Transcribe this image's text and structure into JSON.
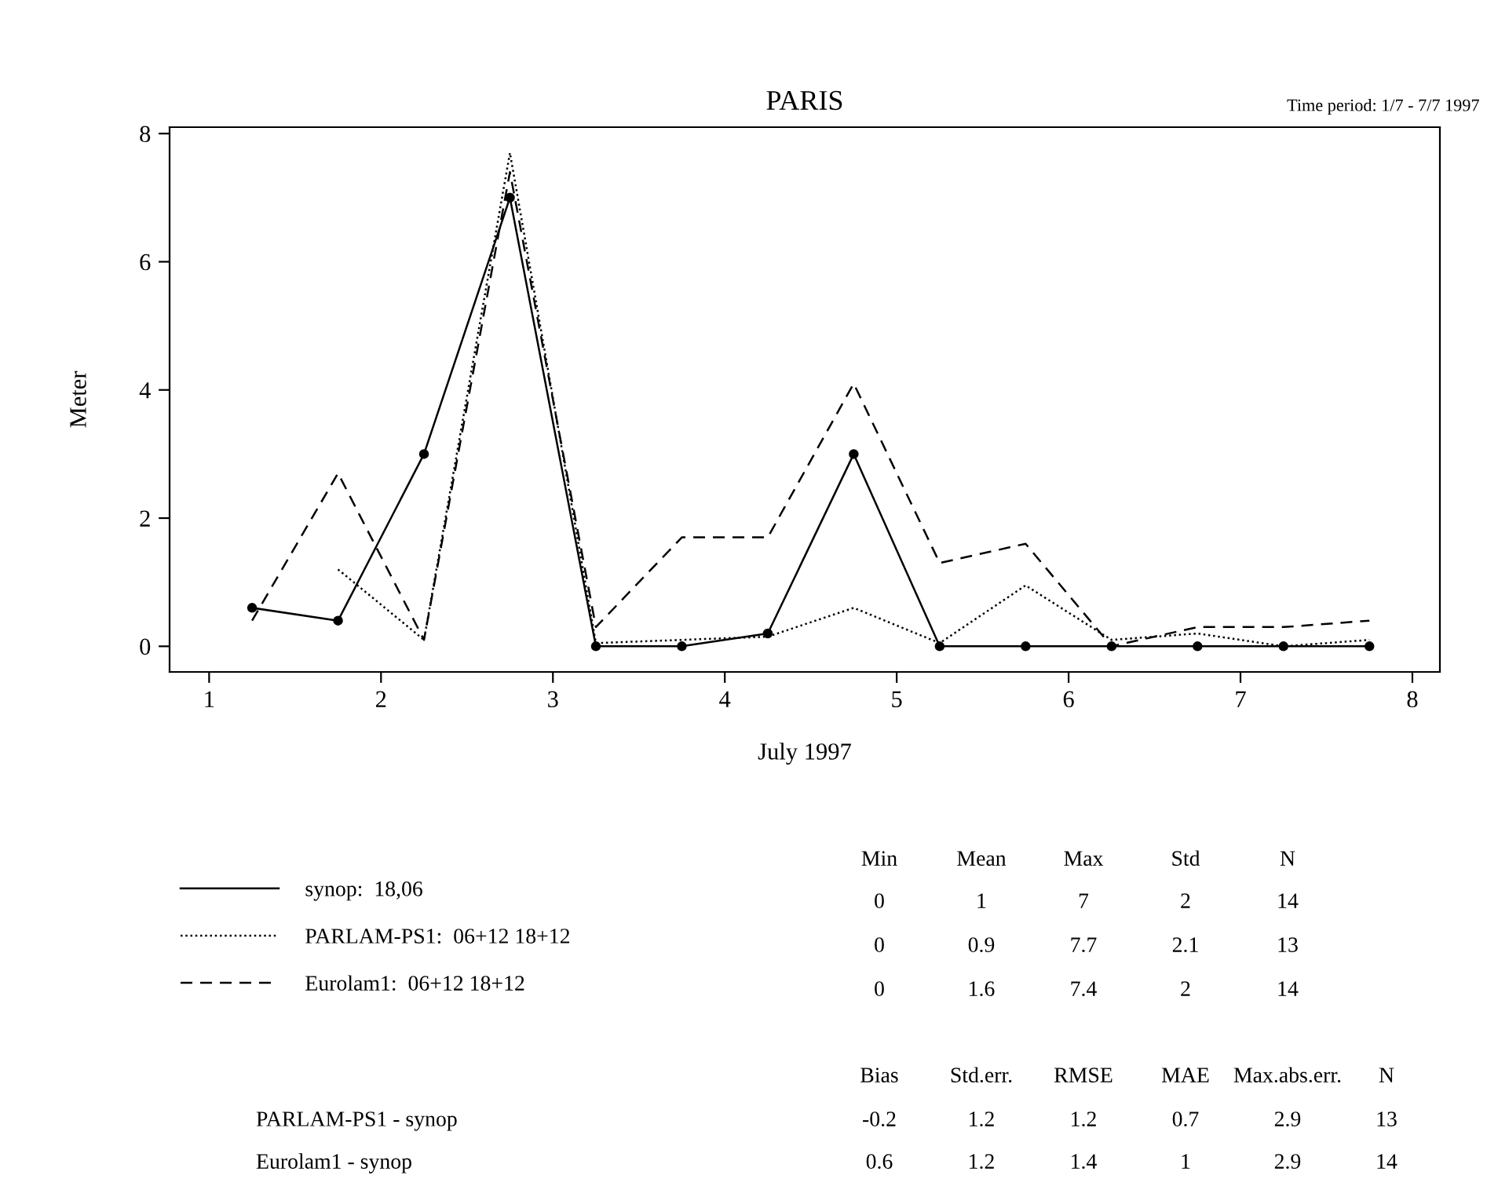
{
  "chart_data": {
    "type": "line",
    "title": "PARIS",
    "xlabel": "July 1997",
    "ylabel": "Meter",
    "xlim": [
      0.77,
      8.16
    ],
    "xticks": [
      1,
      2,
      3,
      4,
      5,
      6,
      7,
      8
    ],
    "ylim": [
      -0.4,
      8.1
    ],
    "yticks": [
      0,
      2,
      4,
      6,
      8
    ],
    "grid": false,
    "legend": "bottom left",
    "series": [
      {
        "name": "synop:  18,06",
        "color": "#000000",
        "marker": "circle",
        "line_style": "solid",
        "x": [
          1.25,
          1.75,
          2.25,
          2.75,
          3.25,
          3.75,
          4.25,
          4.75,
          5.25,
          5.75,
          6.25,
          6.75,
          7.25,
          7.75
        ],
        "values": [
          0.6,
          0.4,
          3.0,
          7.0,
          0,
          0,
          0.2,
          3.0,
          0,
          0,
          0,
          0,
          0,
          0
        ]
      },
      {
        "name": "PARLAM-PS1:  06+12 18+12",
        "color": "#000000",
        "marker": "none",
        "line_style": "dotted",
        "x": [
          1.75,
          2.25,
          2.75,
          3.25,
          3.75,
          4.25,
          4.75,
          5.25,
          5.75,
          6.25,
          6.75,
          7.25,
          7.75
        ],
        "values": [
          1.2,
          0.1,
          7.7,
          0.05,
          0.1,
          0.15,
          0.6,
          0.05,
          0.95,
          0.1,
          0.2,
          0.0,
          0.1
        ]
      },
      {
        "name": "Eurolam1:  06+12 18+12",
        "color": "#000000",
        "marker": "none",
        "line_style": "dashed",
        "x": [
          1.25,
          1.75,
          2.25,
          2.75,
          3.25,
          3.75,
          4.25,
          4.75,
          5.25,
          5.75,
          6.25,
          6.75,
          7.25,
          7.75
        ],
        "values": [
          0.4,
          2.7,
          0.1,
          7.4,
          0.3,
          1.7,
          1.7,
          4.1,
          1.3,
          1.6,
          0.0,
          0.3,
          0.3,
          0.4
        ]
      }
    ],
    "annotations": [
      "Time period: 1/7 - 7/7 1997",
      "Min",
      "Mean",
      "Max",
      "Std",
      "N",
      "0",
      "1",
      "7",
      "2",
      "14",
      "0",
      "0.9",
      "7.7",
      "2.1",
      "13",
      "0",
      "1.6",
      "7.4",
      "2",
      "14",
      "Bias",
      "Std.err.",
      "RMSE",
      "MAE",
      "Max.abs.err.",
      "N",
      "PARLAM-PS1 - synop",
      "-0.2",
      "1.2",
      "1.2",
      "0.7",
      "2.9",
      "13",
      "Eurolam1 - synop",
      "0.6",
      "1.2",
      "1.4",
      "1",
      "2.9",
      "14"
    ]
  }
}
